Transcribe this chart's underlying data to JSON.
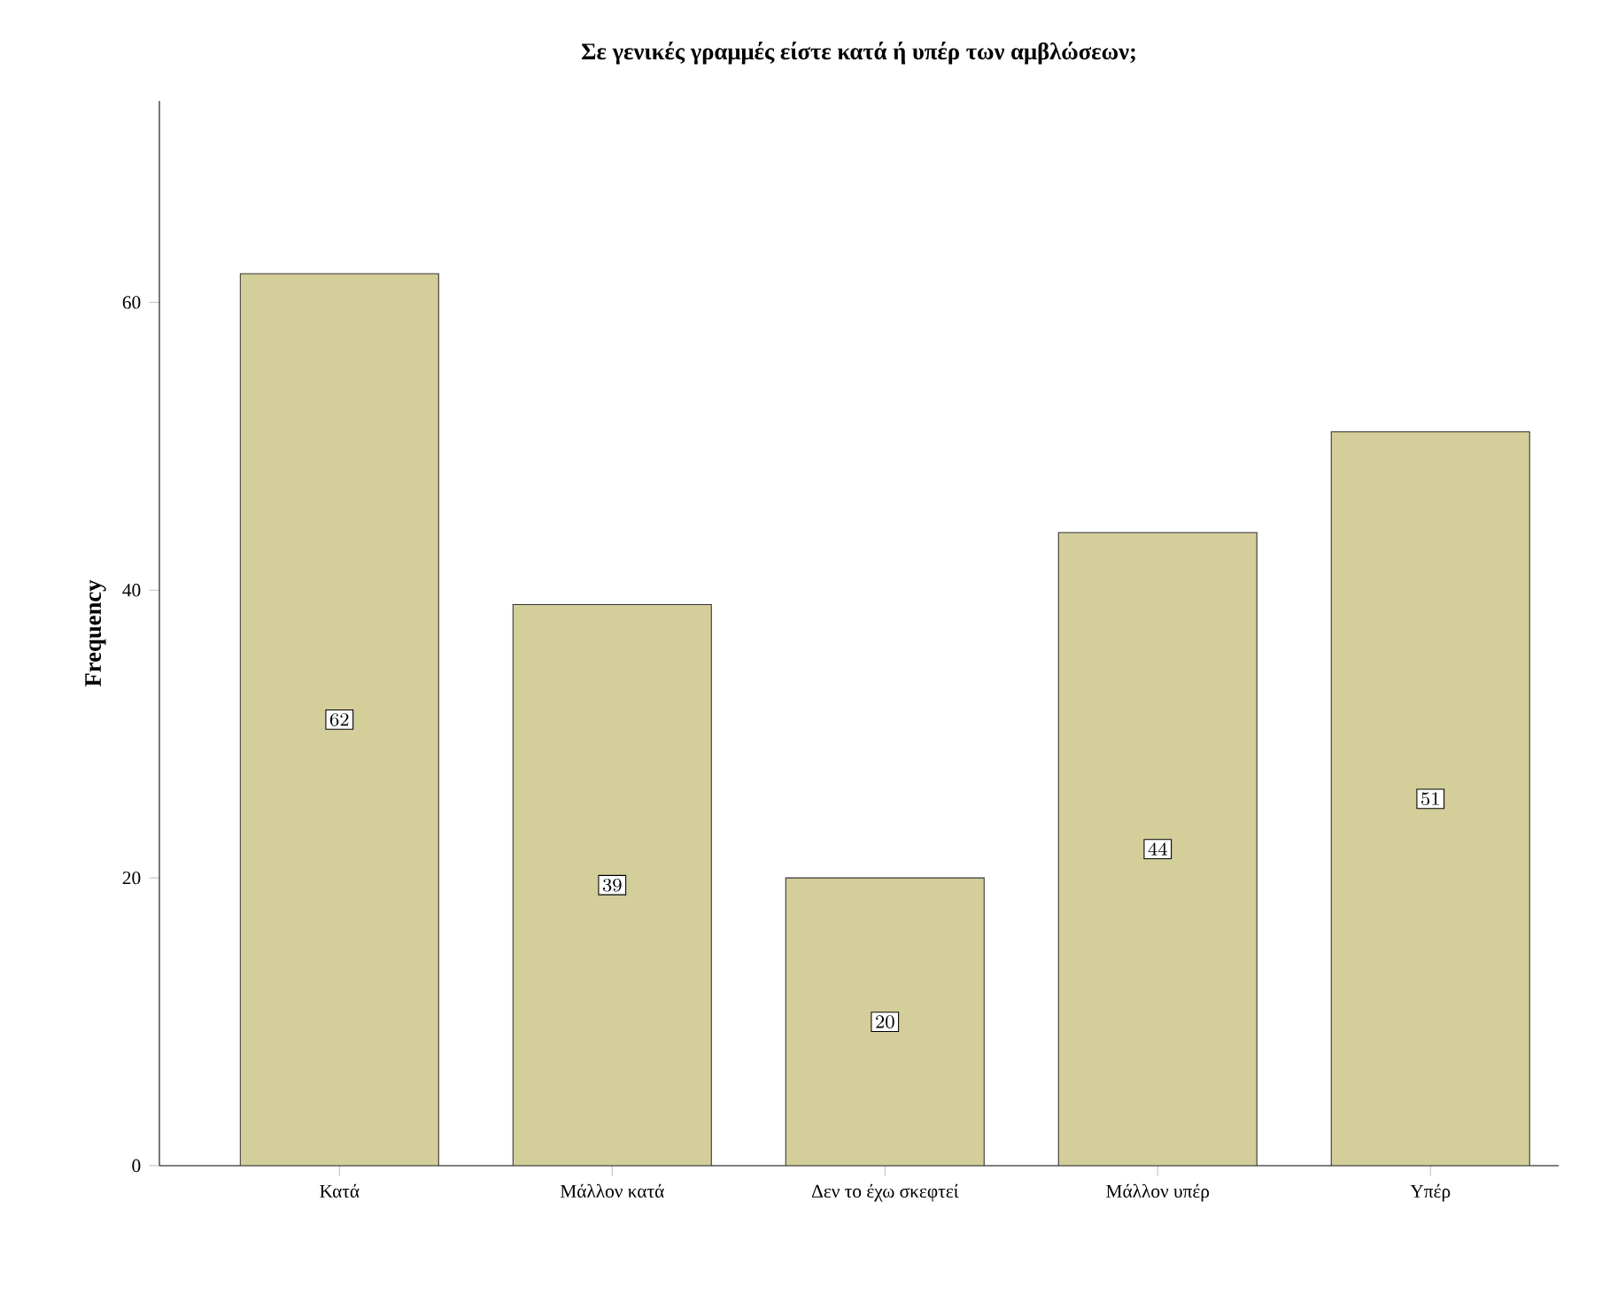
{
  "chart_data": {
    "type": "bar",
    "title": "**Σε γενικές γραμμές είστε κατά ή υπέρ των αμβλώσεων;**",
    "ylabel": "**Frequency**",
    "categories": [
      "Κατά",
      "Μάλλον κατά",
      "Δεν το έχω σκεφτεί",
      "Μάλλον υπέρ",
      "Υπέρ"
    ],
    "values": [
      62,
      39,
      20,
      44,
      51
    ],
    "color": "#d3ce9a",
    "data_labels": true,
    "grid": false,
    "ylim": [
      0,
      74
    ],
    "yticks": [
      0,
      20,
      40,
      60
    ]
  }
}
